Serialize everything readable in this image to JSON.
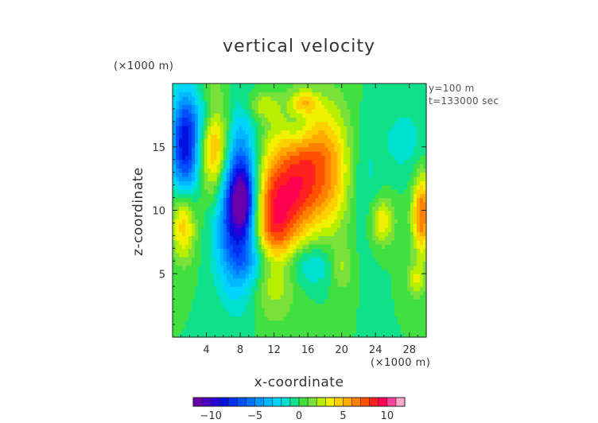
{
  "chart_data": {
    "type": "heatmap",
    "title": "vertical velocity",
    "xlabel": "x-coordinate",
    "ylabel": "z-coordinate",
    "x_unit": "(×1000 m)",
    "y_unit": "(×1000 m)",
    "annotations": [
      "y=100 m",
      "t=133000 sec"
    ],
    "xlim": [
      0,
      30
    ],
    "ylim": [
      0,
      20
    ],
    "x_ticks": [
      4,
      8,
      12,
      16,
      20,
      24,
      28
    ],
    "y_ticks": [
      5,
      10,
      15
    ],
    "x_tick_labels": [
      "4",
      "8",
      "12",
      "16",
      "20",
      "24",
      "28"
    ],
    "y_tick_labels": [
      "5",
      "10",
      "15"
    ],
    "colorbar": {
      "range": [
        -12,
        12
      ],
      "ticks": [
        -10,
        -5,
        0,
        5,
        10
      ],
      "tick_labels": [
        "−10",
        "−5",
        "0",
        "5",
        "10"
      ],
      "levels": [
        -12,
        -11,
        -10,
        -9,
        -8,
        -7,
        -6,
        -5,
        -4,
        -3,
        -2,
        -1,
        0,
        1,
        2,
        3,
        4,
        5,
        6,
        7,
        8,
        9,
        10,
        11
      ],
      "colors": [
        "#6a00a8",
        "#4b00c8",
        "#2a00d8",
        "#0010e0",
        "#0030f0",
        "#0050ff",
        "#0074ff",
        "#0098ff",
        "#00b8ff",
        "#00d4ff",
        "#00e0d0",
        "#10e08a",
        "#40e040",
        "#7ae03a",
        "#b8ee00",
        "#f0f000",
        "#ffd000",
        "#ffaa00",
        "#ff8000",
        "#ff5000",
        "#ff2020",
        "#ff0050",
        "#ff40a0",
        "#ffaacc"
      ]
    },
    "field_components": [
      {
        "x": 1.5,
        "z": 15.2,
        "amp": -9,
        "sx": 1.2,
        "sz": 2.8
      },
      {
        "x": 5.2,
        "z": 14.8,
        "amp": 7,
        "sx": 1.3,
        "sz": 3.0
      },
      {
        "x": 7.8,
        "z": 10.5,
        "amp": -11,
        "sx": 1.8,
        "sz": 4.2
      },
      {
        "x": 8.3,
        "z": 10.8,
        "amp": -5,
        "sx": 0.8,
        "sz": 1.5
      },
      {
        "x": 11.8,
        "z": 9.5,
        "amp": 9,
        "sx": 2.0,
        "sz": 4.0
      },
      {
        "x": 17.5,
        "z": 13.2,
        "amp": 7,
        "sx": 2.6,
        "sz": 3.6
      },
      {
        "x": 14.8,
        "z": 12.0,
        "amp": 3,
        "sx": 1.5,
        "sz": 3.0
      },
      {
        "x": 1.3,
        "z": 9.0,
        "amp": 5,
        "sx": 1.0,
        "sz": 2.0
      },
      {
        "x": 24.8,
        "z": 9.2,
        "amp": 4,
        "sx": 1.0,
        "sz": 1.3
      },
      {
        "x": 29.5,
        "z": 9.7,
        "amp": 7,
        "sx": 0.8,
        "sz": 2.2
      },
      {
        "x": 10.5,
        "z": 6.0,
        "amp": -3,
        "sx": 1.8,
        "sz": 1.2
      },
      {
        "x": 16.0,
        "z": 5.8,
        "amp": -3,
        "sx": 2.5,
        "sz": 1.3
      },
      {
        "x": 22.5,
        "z": 12.5,
        "amp": -1.8,
        "sx": 1.5,
        "sz": 3.5
      },
      {
        "x": 27.5,
        "z": 15.5,
        "amp": -1.5,
        "sx": 2.0,
        "sz": 2.0
      },
      {
        "x": 15.0,
        "z": 16.5,
        "amp": -1.8,
        "sx": 1.2,
        "sz": 1.2
      },
      {
        "x": 15.5,
        "z": 18.5,
        "amp": 3.5,
        "sx": 1.1,
        "sz": 0.6
      },
      {
        "x": 10.5,
        "z": 18.3,
        "amp": 2.5,
        "sx": 1.3,
        "sz": 0.8
      },
      {
        "x": 28.8,
        "z": 4.5,
        "amp": 3,
        "sx": 0.8,
        "sz": 0.9
      },
      {
        "x": 20.0,
        "z": 5.5,
        "amp": 2.5,
        "sx": 1.0,
        "sz": 1.2
      },
      {
        "x": 4.0,
        "z": 17.5,
        "amp": -2,
        "sx": 1.5,
        "sz": 1.2
      }
    ]
  }
}
